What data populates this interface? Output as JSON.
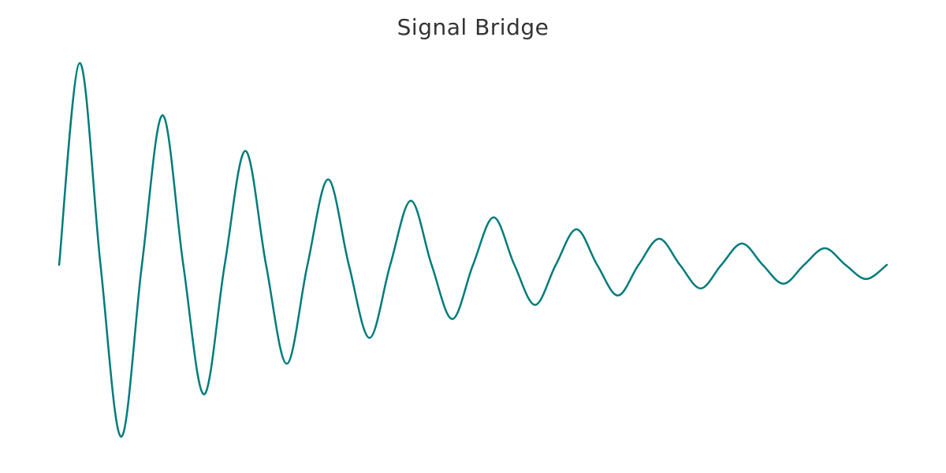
{
  "chart_data": {
    "type": "line",
    "title": "Signal Bridge",
    "xlabel": "",
    "ylabel": "",
    "grid": false,
    "axes_visible": false,
    "line_color": "#007b7b",
    "series": [
      {
        "x": [
          0,
          0.25,
          0.5,
          0.75,
          1,
          1.25,
          1.5,
          1.75,
          2,
          2.25,
          2.5,
          2.75,
          3,
          3.25,
          3.5,
          3.75,
          4,
          4.25,
          4.5,
          4.75,
          5,
          5.25,
          5.5,
          5.75,
          6,
          6.25,
          6.5,
          6.75,
          7,
          7.25,
          7.5,
          7.75,
          8,
          8.25,
          8.5,
          8.75,
          9,
          9.25,
          9.5,
          9.75,
          10
        ],
        "y": [
          0,
          0.85,
          0,
          -0.73,
          0,
          0.63,
          0,
          -0.55,
          0,
          0.48,
          0,
          -0.42,
          0,
          0.36,
          0,
          -0.31,
          0,
          0.27,
          0,
          -0.23,
          0,
          0.2,
          0,
          -0.17,
          0,
          0.15,
          0,
          -0.13,
          0,
          0.11,
          0,
          -0.1,
          0,
          0.09,
          0,
          -0.08,
          0,
          0.07,
          0,
          -0.06,
          0
        ]
      }
    ]
  }
}
